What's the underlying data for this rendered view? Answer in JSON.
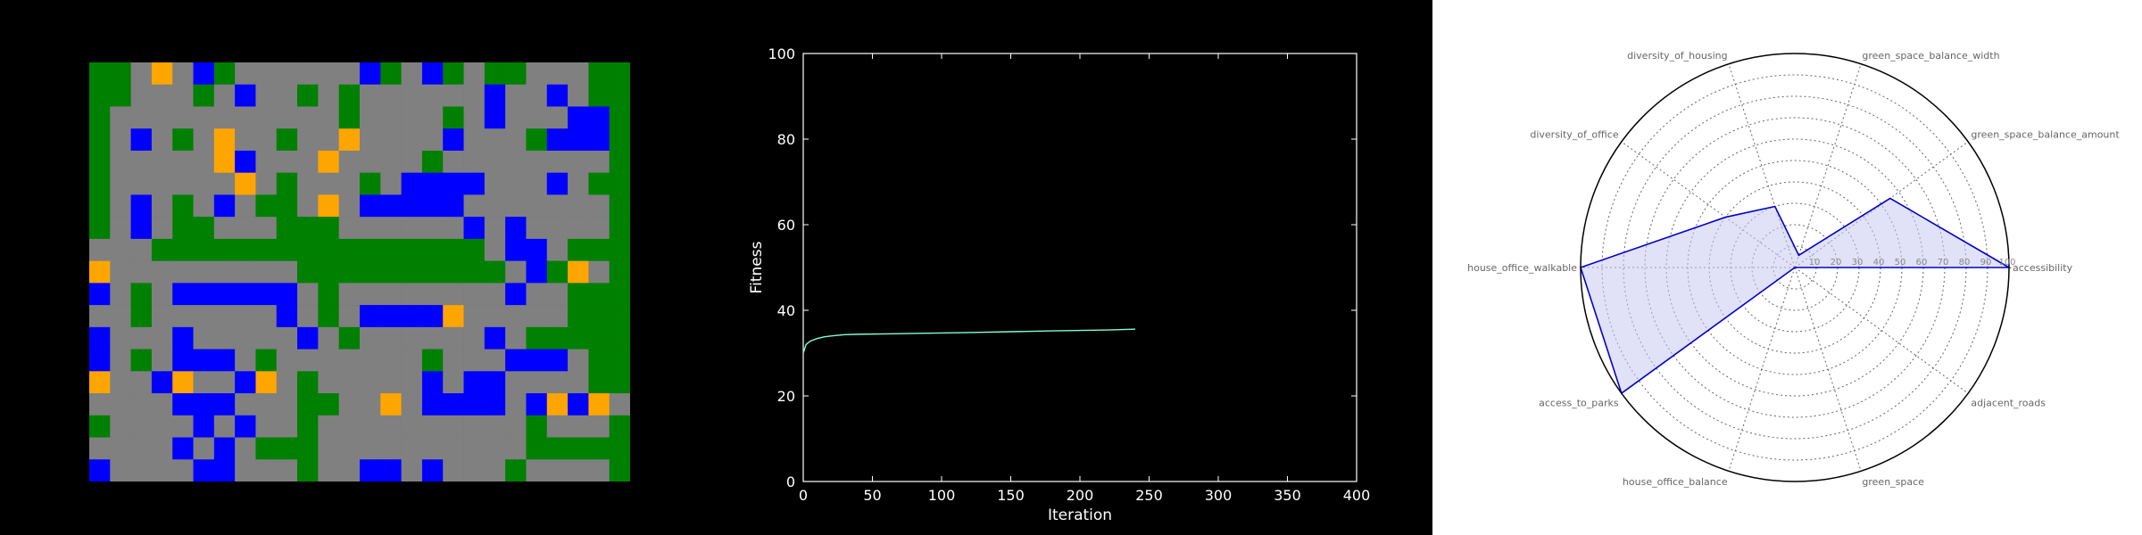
{
  "grid_map": {
    "colors": {
      "0": "#008000",
      "1": "#808080",
      "2": "#0000ff",
      "3": "#ffa500"
    },
    "cells": [
      "gg1312g1111112g12g1gg111g",
      "gg111g1211g1g11111121121g",
      "g11111111111g1111g1211122",
      "g121g1311g11311112111g222",
      "g111113211131111g11111111",
      "g11111131g111g1222211121g",
      "g121g121gg131222221111111",
      "g121gg111ggg1111112121111",
      "111gggggggggggggggg1221gg",
      "3111111111gggggggggg12g31",
      "21g12222221g11111111211gg",
      "11g11111121g12222311111gg",
      "211121111121g11111121gggg",
      "21g12221g1111111g1112221g",
      "3112311231g1111121221111g",
      "1111222111gg11312222123231",
      "g111121211g1111111111g111",
      "11112121ggg1111111111gggg",
      "2111122111g112212111g1111"
    ]
  },
  "chart_data": {
    "type": "line",
    "xlabel": "Iteration",
    "ylabel": "Fitness",
    "xlim": [
      0,
      400
    ],
    "ylim": [
      0,
      100
    ],
    "xticks": [
      0,
      50,
      100,
      150,
      200,
      250,
      300,
      350,
      400
    ],
    "yticks": [
      0,
      20,
      40,
      60,
      80,
      100
    ],
    "series": [
      {
        "color": "#7fffd4",
        "x": [
          0,
          2,
          5,
          10,
          15,
          20,
          30,
          40,
          60,
          80,
          100,
          120,
          150,
          180,
          200,
          220,
          240
        ],
        "y": [
          30.0,
          32.0,
          32.8,
          33.4,
          33.8,
          34.0,
          34.3,
          34.4,
          34.5,
          34.6,
          34.7,
          34.8,
          35.0,
          35.2,
          35.3,
          35.4,
          35.6
        ]
      }
    ]
  },
  "radar_data": {
    "type": "radar",
    "rmax": 100,
    "radial_ticks": [
      "10",
      "20",
      "30",
      "40",
      "50",
      "60",
      "70",
      "80",
      "90",
      "100"
    ],
    "axes": [
      {
        "label": "accessibility",
        "value": 100
      },
      {
        "label": "green_space_balance_amount",
        "value": 55
      },
      {
        "label": "green_space_balance_width",
        "value": 6
      },
      {
        "label": "diversity_of_housing",
        "value": 30
      },
      {
        "label": "diversity_of_office",
        "value": 40
      },
      {
        "label": "house_office_walkable",
        "value": 100
      },
      {
        "label": "access_to_parks",
        "value": 100
      },
      {
        "label": "house_office_balance",
        "value": 0
      },
      {
        "label": "green_space",
        "value": 0
      },
      {
        "label": "adjacent_roads",
        "value": 0
      }
    ],
    "line_color": "#0000cc",
    "fill_color": "#c8c8f0"
  }
}
